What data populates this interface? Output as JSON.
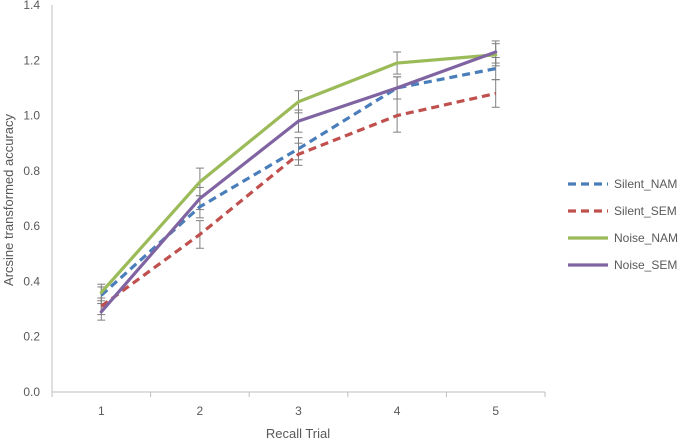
{
  "chart_data": {
    "type": "line",
    "title": "",
    "xlabel": "Recall Trial",
    "ylabel": "Arcsine transformed accuracy",
    "categories": [
      "1",
      "2",
      "3",
      "4",
      "5"
    ],
    "ylim": [
      0,
      1.4
    ],
    "yticks": [
      "0.0",
      "0.2",
      "0.4",
      "0.6",
      "0.8",
      "1.0",
      "1.2",
      "1.4"
    ],
    "grid": false,
    "legend_position": "right",
    "error_bars": true,
    "series": [
      {
        "name": "Silent_NAM",
        "color": "#4a7ebb",
        "dash": "dashed",
        "values": [
          0.35,
          0.67,
          0.88,
          1.1,
          1.17
        ],
        "errors": [
          0.03,
          0.04,
          0.04,
          0.04,
          0.04
        ]
      },
      {
        "name": "Silent_SEM",
        "color": "#c0504d",
        "dash": "dashed",
        "values": [
          0.31,
          0.57,
          0.86,
          1.0,
          1.08
        ],
        "errors": [
          0.03,
          0.05,
          0.04,
          0.06,
          0.05
        ]
      },
      {
        "name": "Noise_NAM",
        "color": "#9bbb59",
        "dash": "solid",
        "values": [
          0.36,
          0.76,
          1.05,
          1.19,
          1.22
        ],
        "errors": [
          0.03,
          0.05,
          0.04,
          0.04,
          0.04
        ]
      },
      {
        "name": "Noise_SEM",
        "color": "#8064a2",
        "dash": "solid",
        "values": [
          0.29,
          0.7,
          0.98,
          1.1,
          1.23
        ],
        "errors": [
          0.03,
          0.04,
          0.04,
          0.04,
          0.04
        ]
      }
    ]
  }
}
